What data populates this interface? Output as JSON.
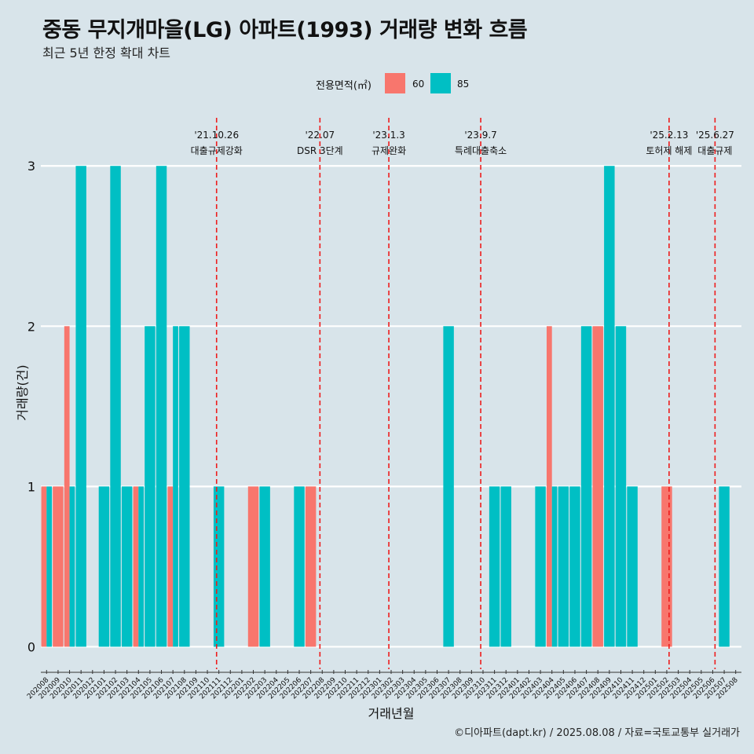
{
  "title": "중동 무지개마을(LG) 아파트(1993) 거래량 변화 흐름",
  "subtitle": "최근 5년 한정 확대 차트",
  "legend": {
    "title": "전용면적(㎡)",
    "items": [
      {
        "label": "60",
        "color": "#f8766d"
      },
      {
        "label": "85",
        "color": "#00bfc4"
      }
    ]
  },
  "caption": "©디아파트(dapt.kr) / 2025.08.08 / 자료=국토교통부 실거래가",
  "chart_data": {
    "type": "bar",
    "xlabel": "거래년월",
    "ylabel": "거래량(건)",
    "ylim": [
      -0.14,
      3.3
    ],
    "yticks": [
      0,
      1,
      2,
      3
    ],
    "categories": [
      "202008",
      "202009",
      "202010",
      "202011",
      "202012",
      "202101",
      "202102",
      "202103",
      "202104",
      "202105",
      "202106",
      "202107",
      "202108",
      "202109",
      "202110",
      "202111",
      "202112",
      "202201",
      "202202",
      "202203",
      "202204",
      "202205",
      "202206",
      "202207",
      "202208",
      "202209",
      "202210",
      "202211",
      "202212",
      "202301",
      "202302",
      "202303",
      "202304",
      "202305",
      "202306",
      "202307",
      "202308",
      "202309",
      "202310",
      "202311",
      "202312",
      "202401",
      "202402",
      "202403",
      "202404",
      "202405",
      "202406",
      "202407",
      "202408",
      "202409",
      "202410",
      "202411",
      "202412",
      "202501",
      "202502",
      "202503",
      "202504",
      "202505",
      "202506",
      "202507",
      "202508"
    ],
    "series": [
      {
        "name": "60",
        "color": "#f8766d",
        "values": [
          1,
          1,
          2,
          0,
          0,
          0,
          0,
          0,
          1,
          0,
          0,
          1,
          0,
          0,
          0,
          0,
          0,
          0,
          1,
          0,
          0,
          0,
          0,
          1,
          0,
          0,
          0,
          0,
          0,
          0,
          0,
          0,
          0,
          0,
          0,
          0,
          0,
          0,
          0,
          0,
          0,
          0,
          0,
          0,
          2,
          0,
          0,
          0,
          2,
          0,
          0,
          0,
          0,
          0,
          1,
          0,
          0,
          0,
          0,
          0,
          0
        ]
      },
      {
        "name": "85",
        "color": "#00bfc4",
        "values": [
          1,
          0,
          1,
          3,
          0,
          1,
          3,
          1,
          1,
          2,
          3,
          2,
          2,
          0,
          0,
          1,
          0,
          0,
          0,
          1,
          0,
          0,
          1,
          0,
          0,
          0,
          0,
          0,
          0,
          0,
          0,
          0,
          0,
          0,
          0,
          2,
          0,
          0,
          0,
          1,
          1,
          0,
          0,
          1,
          1,
          1,
          1,
          2,
          0,
          3,
          2,
          1,
          0,
          0,
          0,
          0,
          0,
          0,
          0,
          1,
          0
        ]
      }
    ],
    "events": [
      {
        "date": "'21.10.26",
        "label": "대출규제강화",
        "index": 14.8
      },
      {
        "date": "'22.07",
        "label": "DSR 3단계",
        "index": 23.8
      },
      {
        "date": "'23.1.3",
        "label": "규제완화",
        "index": 29.8
      },
      {
        "date": "'23.9.7",
        "label": "특례대출축소",
        "index": 37.8
      },
      {
        "date": "'25.2.13",
        "label": "토허제 해제",
        "index": 54.2
      },
      {
        "date": "'25.6.27",
        "label": "대출규제",
        "index": 58.2
      }
    ],
    "grid": "horizontal",
    "legend_position": "top"
  }
}
